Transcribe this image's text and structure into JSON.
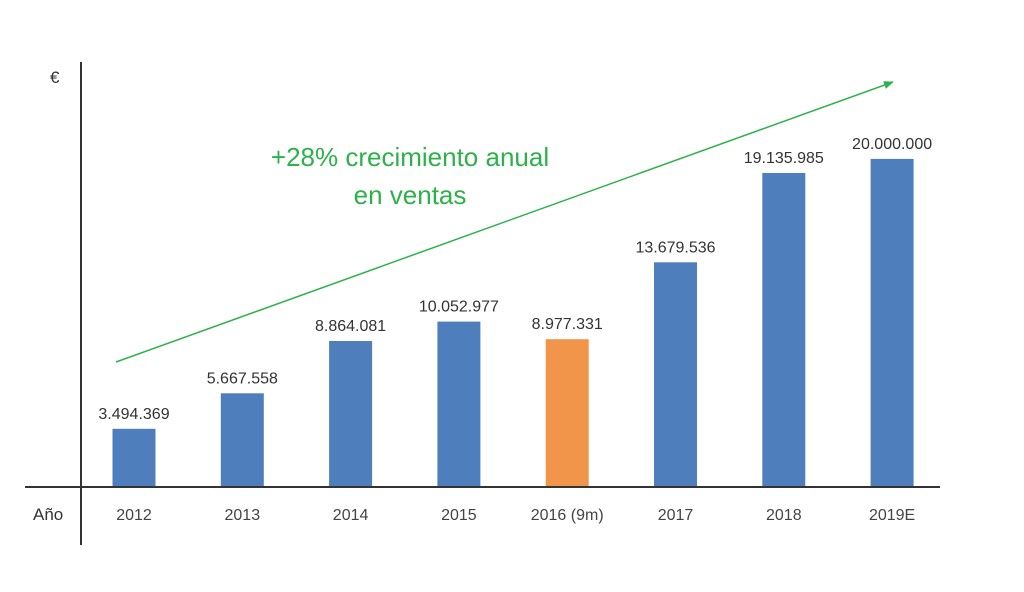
{
  "chart_data": {
    "type": "bar",
    "title": "",
    "ylabel": "€",
    "xlabel": "Año",
    "ylim": [
      0,
      22500000
    ],
    "grid": false,
    "categories": [
      "2012",
      "2013",
      "2014",
      "2015",
      "2016 (9m)",
      "2017",
      "2018",
      "2019E"
    ],
    "values": [
      3494369,
      5667558,
      8864081,
      10052977,
      8977331,
      13679536,
      19135985,
      20000000
    ],
    "value_labels": [
      "3.494.369",
      "5.667.558",
      "8.864.081",
      "10.052.977",
      "8.977.331",
      "13.679.536",
      "19.135.985",
      "20.000.000"
    ],
    "colors": {
      "default": "#4f7ebc",
      "highlight": "#f0954a",
      "highlight_category": "2016 (9m)",
      "annotation": "#2db14a",
      "axis": "#333333"
    },
    "annotation": {
      "lines": [
        "+28% crecimiento anual",
        "en ventas"
      ],
      "arrow": "trend-arrow"
    }
  }
}
